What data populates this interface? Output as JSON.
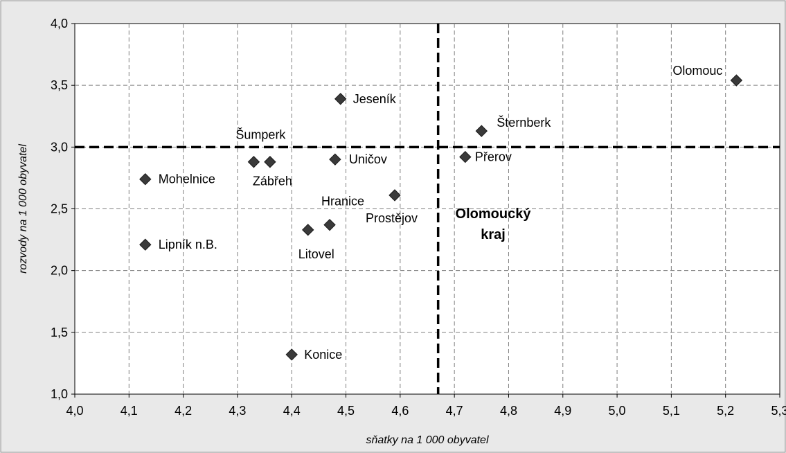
{
  "chart_data": {
    "type": "scatter",
    "xlabel": "sňatky na 1 000 obyvatel",
    "ylabel": "rozvody na 1 000 obyvatel",
    "xlim": [
      4.0,
      5.3
    ],
    "ylim": [
      1.0,
      4.0
    ],
    "x_ticks": [
      "4,0",
      "4,1",
      "4,2",
      "4,3",
      "4,4",
      "4,5",
      "4,6",
      "4,7",
      "4,8",
      "4,9",
      "5,0",
      "5,1",
      "5,2",
      "5,3"
    ],
    "y_ticks": [
      "1,0",
      "1,5",
      "2,0",
      "2,5",
      "3,0",
      "3,5",
      "4,0"
    ],
    "grid": true,
    "points": [
      {
        "name": "Olomouc",
        "x": 5.22,
        "y": 3.54
      },
      {
        "name": "Jeseník",
        "x": 4.49,
        "y": 3.39
      },
      {
        "name": "Šternberk",
        "x": 4.75,
        "y": 3.13
      },
      {
        "name": "Přerov",
        "x": 4.72,
        "y": 2.92
      },
      {
        "name": "Šumperk",
        "x": 4.33,
        "y": 2.88
      },
      {
        "name": "Zábřeh",
        "x": 4.36,
        "y": 2.88
      },
      {
        "name": "Uničov",
        "x": 4.48,
        "y": 2.9
      },
      {
        "name": "Mohelnice",
        "x": 4.13,
        "y": 2.74
      },
      {
        "name": "Prostějov",
        "x": 4.59,
        "y": 2.61
      },
      {
        "name": "Hranice",
        "x": 4.47,
        "y": 2.37
      },
      {
        "name": "Litovel",
        "x": 4.43,
        "y": 2.33
      },
      {
        "name": "Lipník n.B.",
        "x": 4.13,
        "y": 2.21
      },
      {
        "name": "Konice",
        "x": 4.4,
        "y": 1.32
      }
    ],
    "reference": {
      "name_line1": "Olomoucký",
      "name_line2": "kraj",
      "x": 4.67,
      "y": 3.0
    },
    "colors": {
      "marker": "#3a3a3a",
      "grid": "#7f7f7f",
      "reference_line": "#000000",
      "outer_frame_bg": "#e9e9e9",
      "outer_frame_border": "#8c8c8c"
    }
  }
}
